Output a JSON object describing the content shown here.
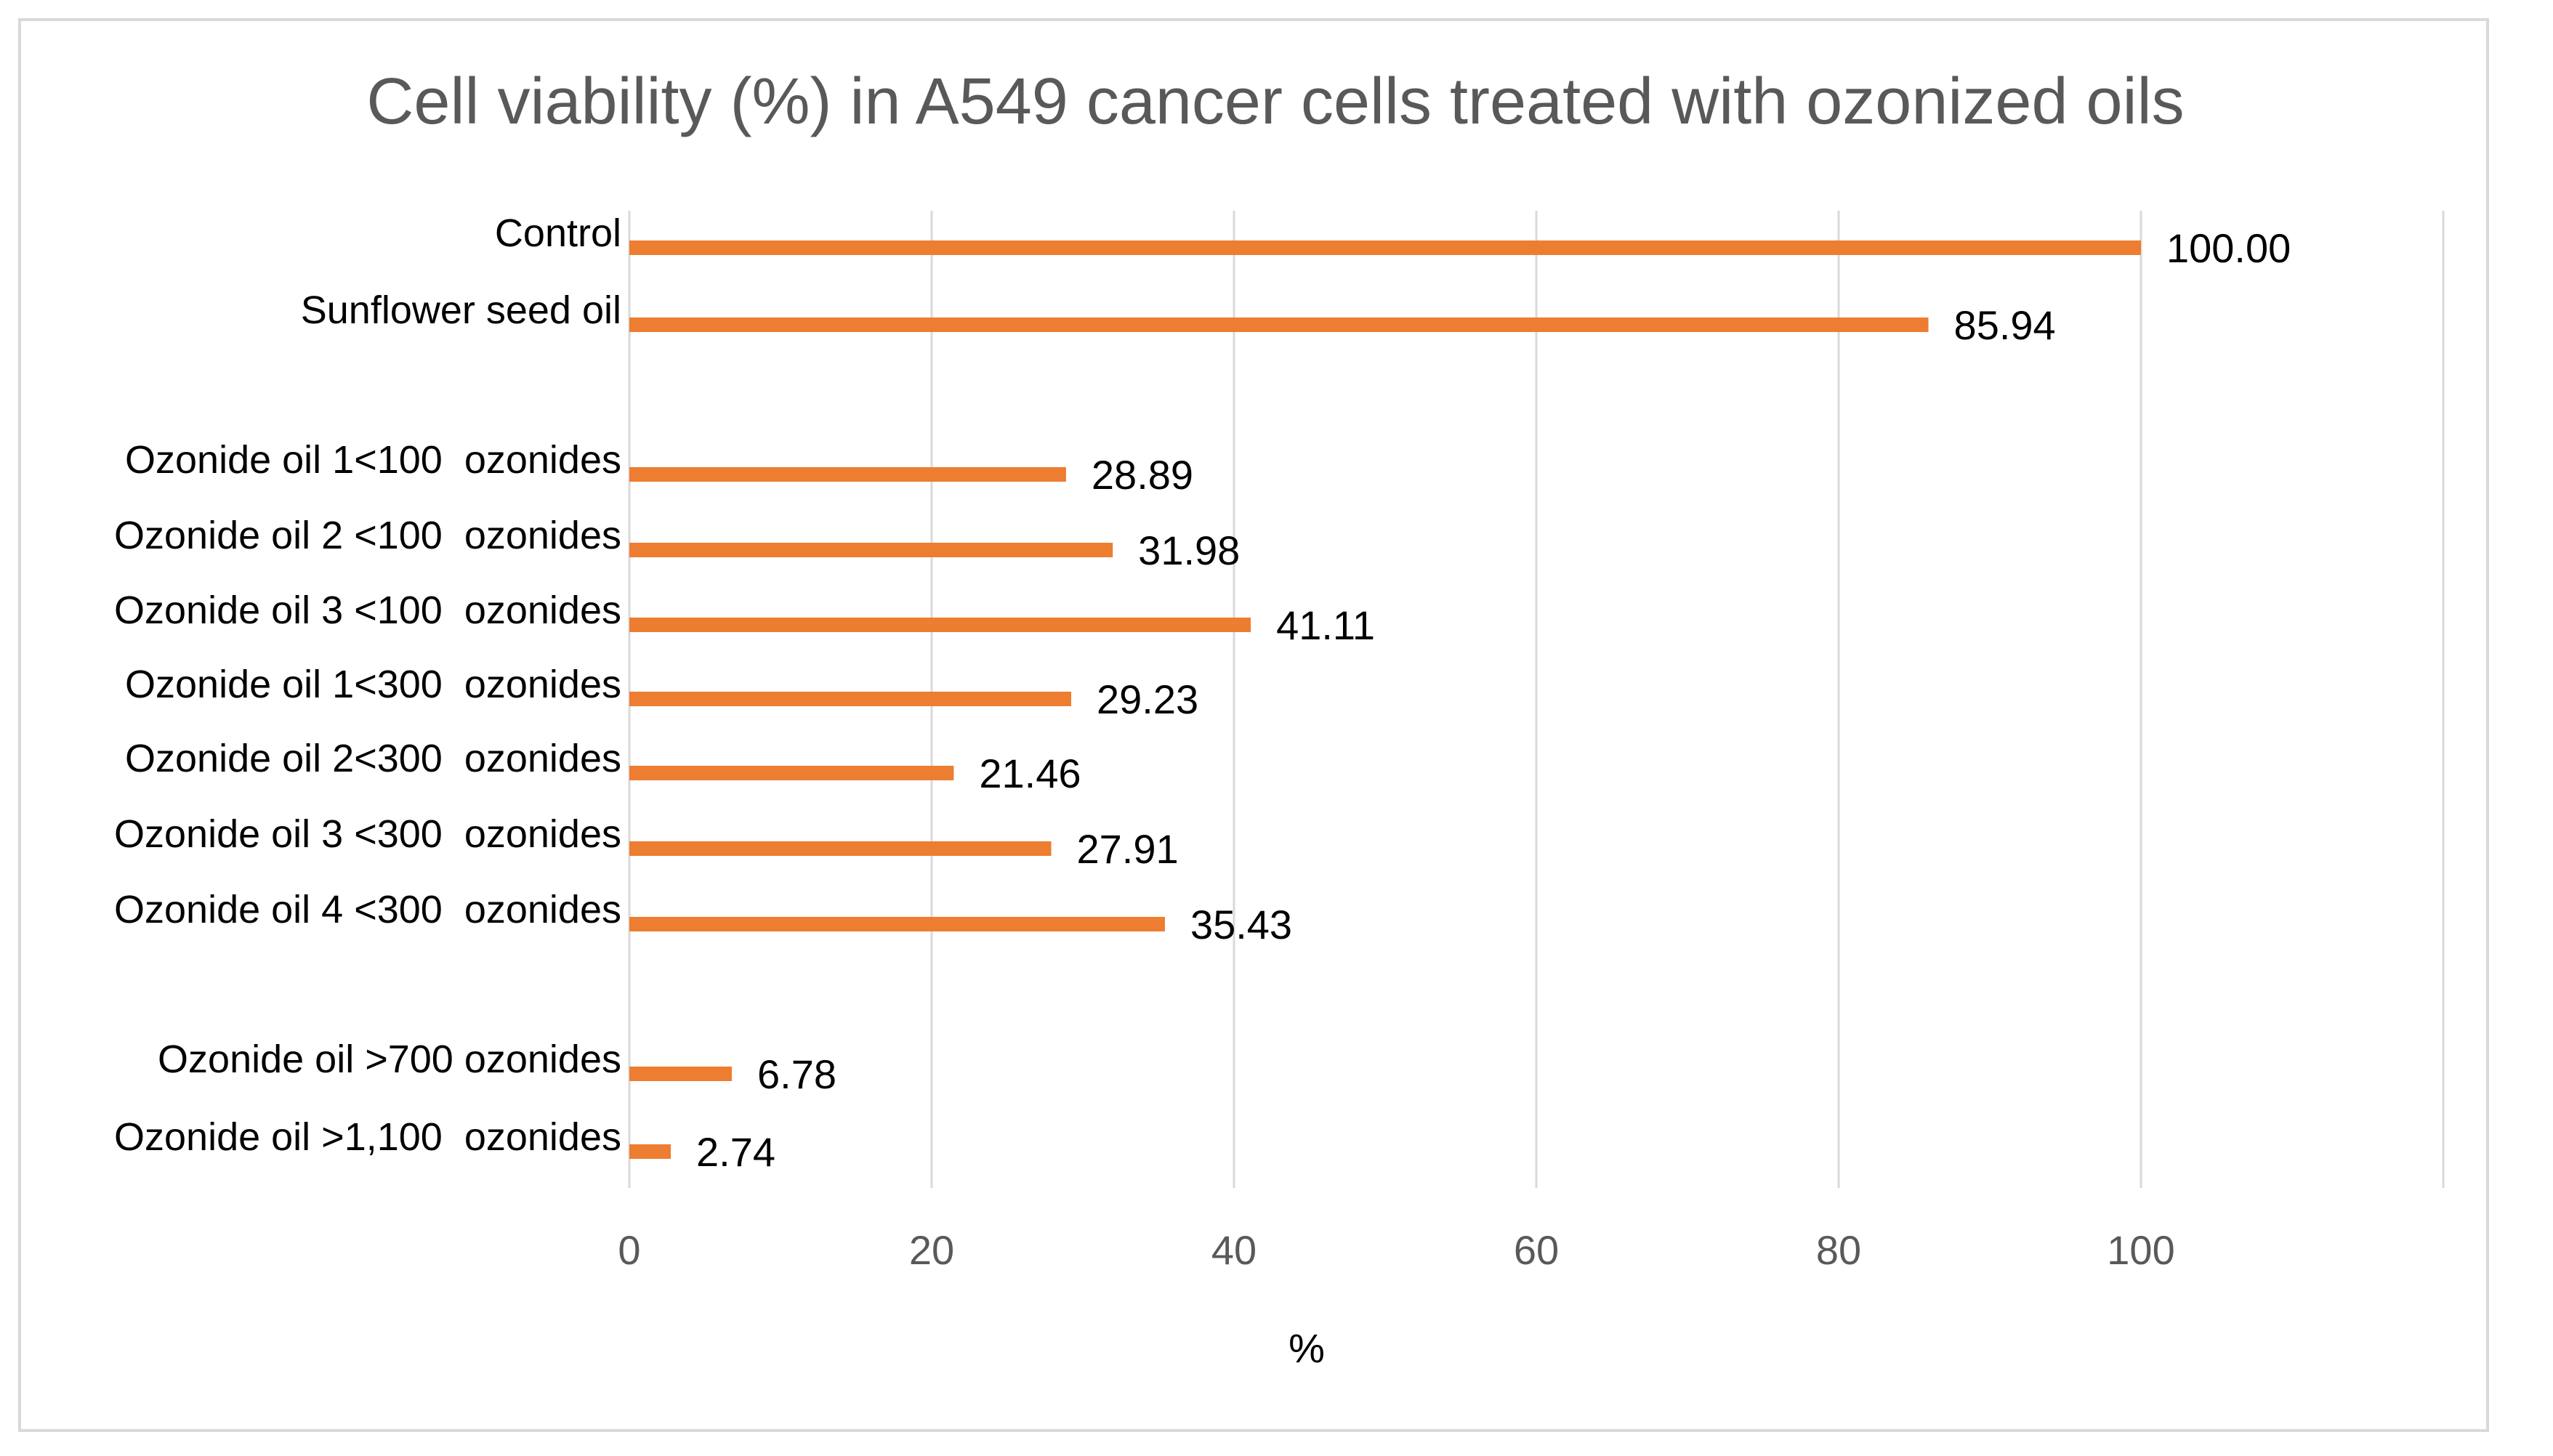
{
  "chart_data": {
    "type": "bar",
    "orientation": "horizontal",
    "title": "Cell viability (%) in A549 cancer cells treated with ozonized oils",
    "xlabel": "%",
    "ylabel": "",
    "xlim": [
      0,
      120
    ],
    "xticks": [
      0,
      20,
      40,
      60,
      80,
      100
    ],
    "tick_labels": [
      "0",
      "20",
      "40",
      "60",
      "80",
      "100"
    ],
    "grid": true,
    "bar_color": "#ED7D31",
    "gridline_color": "#D9D9D9",
    "categories": [
      "Control",
      "Sunflower seed oil",
      "Ozonide oil 1<100  ozonides",
      "Ozonide oil 2 <100  ozonides",
      "Ozonide oil 3 <100  ozonides",
      "Ozonide oil 1<300  ozonides",
      "Ozonide oil 2<300  ozonides",
      "Ozonide oil 3 <300  ozonides",
      "Ozonide oil 4 <300  ozonides",
      "Ozonide oil >700 ozonides",
      "Ozonide oil >1,100  ozonides"
    ],
    "values": [
      100.0,
      85.94,
      28.89,
      31.98,
      41.11,
      29.23,
      21.46,
      27.91,
      35.43,
      6.78,
      2.74
    ],
    "value_labels": [
      "100.00",
      "85.94",
      "28.89",
      "31.98",
      "41.11",
      "29.23",
      "21.46",
      "27.91",
      "35.43",
      "6.78",
      "2.74"
    ],
    "groups": [
      [
        "Control",
        "Sunflower seed oil"
      ],
      [
        "Ozonide oil 1<100  ozonides",
        "Ozonide oil 2 <100  ozonides",
        "Ozonide oil 3 <100  ozonides",
        "Ozonide oil 1<300  ozonides",
        "Ozonide oil 2<300  ozonides",
        "Ozonide oil 3 <300  ozonides",
        "Ozonide oil 4 <300  ozonides"
      ],
      [
        "Ozonide oil >700 ozonides",
        "Ozonide oil >1,100  ozonides"
      ]
    ]
  }
}
